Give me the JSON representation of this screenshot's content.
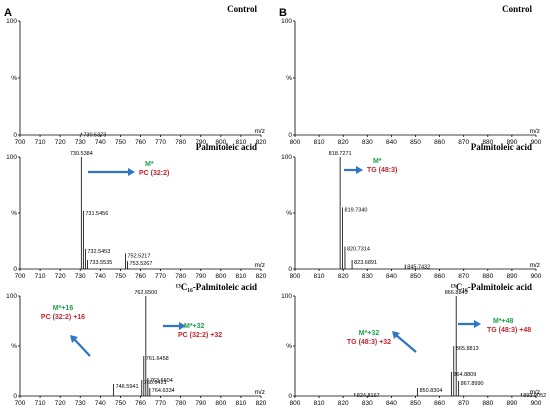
{
  "panel_labels": [
    "A",
    "B"
  ],
  "chart_data": [
    {
      "type": "bar",
      "panel": "A",
      "title": "Control",
      "xlabel": "m/z",
      "xlim": [
        700,
        820
      ],
      "xticks": [
        700,
        710,
        720,
        730,
        740,
        750,
        760,
        770,
        780,
        790,
        800,
        810,
        820
      ],
      "ylim": [
        0,
        100
      ],
      "yticks": [
        "0",
        "%",
        "100"
      ],
      "peaks": [
        {
          "x": 730.5373,
          "y": 2,
          "label": "730.5373"
        }
      ],
      "annotations": []
    },
    {
      "type": "bar",
      "panel": "A",
      "title": "Palmitoleic acid",
      "xlabel": "m/z",
      "xlim": [
        700,
        820
      ],
      "xticks": [
        700,
        710,
        720,
        730,
        740,
        750,
        760,
        770,
        780,
        790,
        800,
        810,
        820
      ],
      "ylim": [
        0,
        100
      ],
      "yticks": [
        "0",
        "%",
        "100"
      ],
      "peaks": [
        {
          "x": 730.5384,
          "y": 100,
          "label": "730.5384"
        },
        {
          "x": 731.5456,
          "y": 52,
          "label": "731.5456"
        },
        {
          "x": 732.5453,
          "y": 18,
          "label": "732.5453"
        },
        {
          "x": 733.5535,
          "y": 8,
          "label": "733.5535"
        },
        {
          "x": 752.5217,
          "y": 14,
          "label": "752.5217"
        },
        {
          "x": 753.5267,
          "y": 7,
          "label": "753.5267"
        }
      ],
      "annotations": [
        {
          "line1": "M*",
          "line2": "PC (32:2)"
        }
      ]
    },
    {
      "type": "bar",
      "panel": "A",
      "title": "¹³C₁₆-Palmitoleic acid",
      "xlabel": "m/z",
      "xlim": [
        700,
        820
      ],
      "xticks": [
        700,
        710,
        720,
        730,
        740,
        750,
        760,
        770,
        780,
        790,
        800,
        810,
        820
      ],
      "ylim": [
        0,
        100
      ],
      "yticks": [
        "0",
        "%",
        "100"
      ],
      "peaks": [
        {
          "x": 746.5941,
          "y": 12,
          "label": "746.5941"
        },
        {
          "x": 760.6421,
          "y": 16,
          "label": "760.6421"
        },
        {
          "x": 761.6458,
          "y": 40,
          "label": "761.6458"
        },
        {
          "x": 762.65,
          "y": 100,
          "label": "762.6500"
        },
        {
          "x": 763.6604,
          "y": 18,
          "label": "763.6604"
        },
        {
          "x": 764.6334,
          "y": 8,
          "label": "764.6334"
        }
      ],
      "annotations": [
        {
          "line1": "M*+16",
          "line2": "PC (32:2) +16"
        },
        {
          "line1": "M*+32",
          "line2": "PC (32:2) +32"
        }
      ]
    },
    {
      "type": "bar",
      "panel": "B",
      "title": "Control",
      "xlabel": "m/z",
      "xlim": [
        800,
        900
      ],
      "xticks": [
        800,
        810,
        820,
        830,
        840,
        850,
        860,
        870,
        880,
        890,
        900
      ],
      "ylim": [
        0,
        100
      ],
      "yticks": [
        "0",
        "%",
        "100"
      ],
      "peaks": [],
      "annotations": []
    },
    {
      "type": "bar",
      "panel": "B",
      "title": "Palmitoleic acid",
      "xlabel": "m/z",
      "xlim": [
        800,
        900
      ],
      "xticks": [
        800,
        810,
        820,
        830,
        840,
        850,
        860,
        870,
        880,
        890,
        900
      ],
      "ylim": [
        0,
        100
      ],
      "yticks": [
        "0",
        "%",
        "100"
      ],
      "peaks": [
        {
          "x": 818.7271,
          "y": 100,
          "label": "818.7271"
        },
        {
          "x": 819.734,
          "y": 55,
          "label": "819.7340"
        },
        {
          "x": 820.7314,
          "y": 20,
          "label": "820.7314"
        },
        {
          "x": 823.6891,
          "y": 8,
          "label": "823.6891"
        },
        {
          "x": 845.7432,
          "y": 4,
          "label": "845.7432"
        }
      ],
      "annotations": [
        {
          "line1": "M*",
          "line2": "TG (48:3)"
        }
      ]
    },
    {
      "type": "bar",
      "panel": "B",
      "title": "¹³C₁₆-Palmitoleic acid",
      "xlabel": "m/z",
      "xlim": [
        800,
        900
      ],
      "xticks": [
        800,
        810,
        820,
        830,
        840,
        850,
        860,
        870,
        880,
        890,
        900
      ],
      "ylim": [
        0,
        100
      ],
      "yticks": [
        "0",
        "%",
        "100"
      ],
      "peaks": [
        {
          "x": 824.8167,
          "y": 3,
          "label": "824.8167"
        },
        {
          "x": 850.8304,
          "y": 8,
          "label": "850.8304"
        },
        {
          "x": 864.8809,
          "y": 24,
          "label": "864.8809"
        },
        {
          "x": 865.8813,
          "y": 50,
          "label": "865.8813"
        },
        {
          "x": 866.8843,
          "y": 100,
          "label": "866.8843"
        },
        {
          "x": 867.899,
          "y": 15,
          "label": "867.8990"
        },
        {
          "x": 893.9052,
          "y": 3,
          "label": "893.9052"
        }
      ],
      "annotations": [
        {
          "line1": "M*+32",
          "line2": "TG (48:3) +32"
        },
        {
          "line1": "M*+48",
          "line2": "TG (48:3) +48"
        }
      ]
    }
  ]
}
